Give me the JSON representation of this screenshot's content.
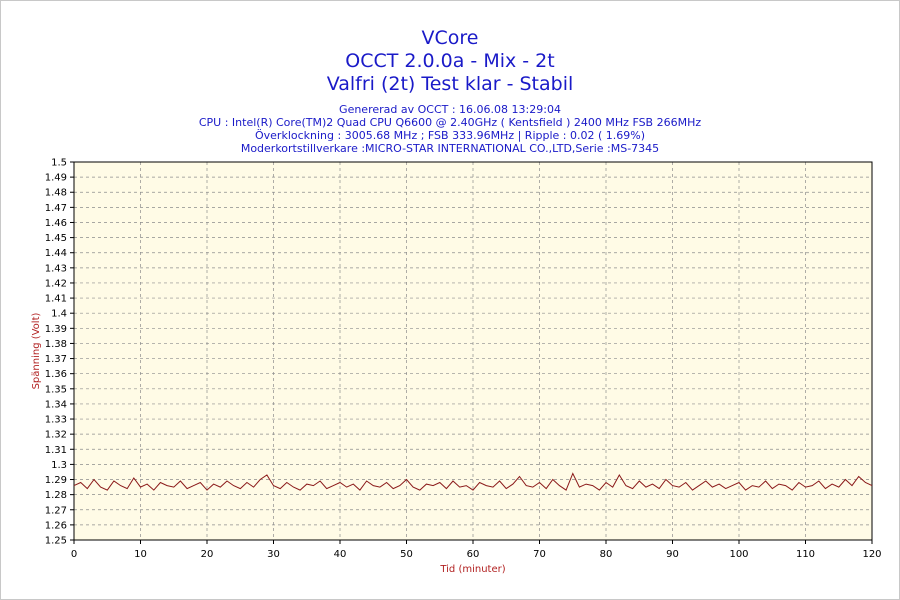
{
  "chart_data": {
    "type": "line",
    "title": "VCore",
    "subtitle": [
      "OCCT 2.0.0a - Mix - 2t",
      "Valfri (2t) Test klar - Stabil"
    ],
    "info_lines": [
      "Genererad av OCCT : 16.06.08 13:29:04",
      "CPU : Intel(R) Core(TM)2 Quad CPU Q6600 @ 2.40GHz ( Kentsfield ) 2400 MHz FSB 266MHz",
      "Överklockning : 3005.68 MHz ; FSB 333.96MHz | Ripple : 0.02 ( 1.69%)",
      "Moderkortstillverkare :MICRO-STAR INTERNATIONAL CO.,LTD,Serie :MS-7345"
    ],
    "xlabel": "Tid (minuter)",
    "ylabel": "Spänning (Volt)",
    "xlim": [
      0,
      120
    ],
    "ylim": [
      1.25,
      1.5
    ],
    "x_ticks": [
      "0",
      "10",
      "20",
      "30",
      "40",
      "50",
      "60",
      "70",
      "80",
      "90",
      "100",
      "110",
      "120"
    ],
    "y_ticks": [
      "1.5",
      "1.49",
      "1.48",
      "1.47",
      "1.46",
      "1.45",
      "1.44",
      "1.43",
      "1.42",
      "1.41",
      "1.4",
      "1.39",
      "1.38",
      "1.37",
      "1.36",
      "1.35",
      "1.34",
      "1.33",
      "1.32",
      "1.31",
      "1.3",
      "1.29",
      "1.28",
      "1.27",
      "1.26",
      "1.25"
    ],
    "grid": true,
    "plot_background": "#fffbe6",
    "line_color": "#8b1a1a",
    "series": [
      {
        "x_step": 1,
        "values": [
          1.286,
          1.288,
          1.284,
          1.29,
          1.285,
          1.283,
          1.289,
          1.286,
          1.284,
          1.291,
          1.285,
          1.287,
          1.283,
          1.288,
          1.286,
          1.285,
          1.289,
          1.284,
          1.286,
          1.288,
          1.283,
          1.287,
          1.285,
          1.289,
          1.286,
          1.284,
          1.288,
          1.285,
          1.29,
          1.293,
          1.286,
          1.284,
          1.288,
          1.285,
          1.283,
          1.287,
          1.286,
          1.289,
          1.284,
          1.286,
          1.288,
          1.285,
          1.287,
          1.283,
          1.289,
          1.286,
          1.285,
          1.288,
          1.284,
          1.286,
          1.29,
          1.285,
          1.283,
          1.287,
          1.286,
          1.288,
          1.284,
          1.289,
          1.285,
          1.286,
          1.283,
          1.288,
          1.286,
          1.285,
          1.289,
          1.284,
          1.287,
          1.292,
          1.286,
          1.285,
          1.288,
          1.284,
          1.29,
          1.286,
          1.283,
          1.294,
          1.285,
          1.287,
          1.286,
          1.283,
          1.288,
          1.285,
          1.293,
          1.286,
          1.284,
          1.289,
          1.285,
          1.287,
          1.284,
          1.29,
          1.286,
          1.285,
          1.288,
          1.283,
          1.286,
          1.289,
          1.285,
          1.287,
          1.284,
          1.286,
          1.288,
          1.283,
          1.286,
          1.285,
          1.289,
          1.284,
          1.287,
          1.286,
          1.283,
          1.288,
          1.285,
          1.286,
          1.289,
          1.284,
          1.287,
          1.285,
          1.29,
          1.286,
          1.292,
          1.288,
          1.286
        ]
      }
    ]
  }
}
